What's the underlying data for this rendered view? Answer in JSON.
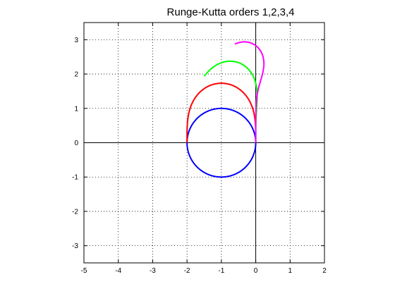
{
  "chart_data": {
    "type": "line",
    "title": "Runge-Kutta orders 1,2,3,4",
    "xlabel": "",
    "ylabel": "",
    "xlim": [
      -5,
      2
    ],
    "ylim": [
      -3.5,
      3.5
    ],
    "xticks": [
      -5,
      -4,
      -3,
      -2,
      -1,
      0,
      1,
      2
    ],
    "yticks": [
      -3,
      -2,
      -1,
      0,
      1,
      2,
      3
    ],
    "grid": "dotted",
    "axis_lines": [
      "x=0",
      "y=0"
    ],
    "series": [
      {
        "order": 1,
        "color": "#0000ff"
      },
      {
        "order": 2,
        "color": "#ff0000"
      },
      {
        "order": 3,
        "color": "#00ff00"
      },
      {
        "order": 4,
        "color": "#ff00ff"
      }
    ]
  }
}
